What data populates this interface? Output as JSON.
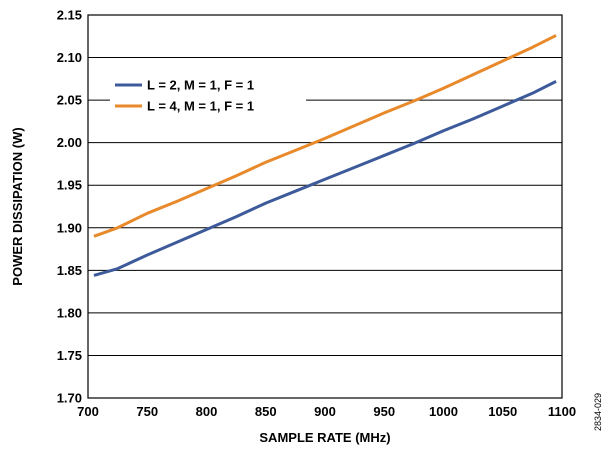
{
  "chart_data": {
    "type": "line",
    "xlabel": "SAMPLE RATE (MHz)",
    "ylabel": "POWER DISSIPATION (W)",
    "xlim": [
      700,
      1100
    ],
    "ylim": [
      1.7,
      2.15
    ],
    "xticks": [
      "700",
      "750",
      "800",
      "850",
      "900",
      "950",
      "1000",
      "1050",
      "1100"
    ],
    "yticks": [
      "1.70",
      "1.75",
      "1.80",
      "1.85",
      "1.90",
      "1.95",
      "2.00",
      "2.05",
      "2.10",
      "2.15"
    ],
    "grid": "horizontal",
    "legend_position": "top-left",
    "figure_id": "2834-029",
    "series": [
      {
        "name": "L = 2, M = 1, F = 1",
        "color": "#3d5a9b",
        "x": [
          705,
          725,
          750,
          775,
          800,
          825,
          850,
          875,
          900,
          925,
          950,
          975,
          1000,
          1025,
          1050,
          1075,
          1095
        ],
        "y": [
          1.844,
          1.852,
          1.868,
          1.883,
          1.898,
          1.913,
          1.929,
          1.943,
          1.957,
          1.971,
          1.985,
          1.999,
          2.014,
          2.028,
          2.043,
          2.058,
          2.072
        ]
      },
      {
        "name": "L = 4, M = 1, F = 1",
        "color": "#e8892b",
        "x": [
          705,
          725,
          750,
          775,
          800,
          825,
          850,
          875,
          900,
          925,
          950,
          975,
          1000,
          1025,
          1050,
          1075,
          1095
        ],
        "y": [
          1.89,
          1.9,
          1.917,
          1.931,
          1.946,
          1.961,
          1.977,
          1.991,
          2.005,
          2.02,
          2.035,
          2.049,
          2.064,
          2.08,
          2.096,
          2.112,
          2.126
        ]
      }
    ]
  }
}
